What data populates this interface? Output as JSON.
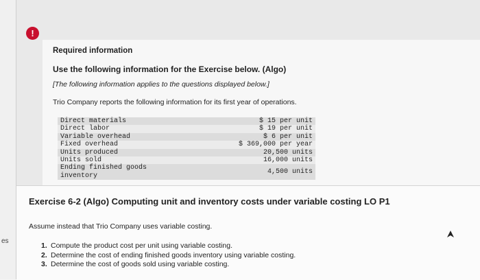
{
  "sidebar": {
    "text": "es"
  },
  "alert_icon": "!",
  "required": {
    "heading": "Required information",
    "instruction": "Use the following information for the Exercise below. (Algo)",
    "note": "[The following information applies to the questions displayed below.]",
    "intro": "Trio Company reports the following information for its first year of operations.",
    "table": {
      "rows": [
        [
          "Direct materials",
          "$ 15 per unit"
        ],
        [
          "Direct labor",
          "$ 19 per unit"
        ],
        [
          "Variable overhead",
          "$ 6 per unit"
        ],
        [
          "Fixed overhead",
          "$ 369,000 per year"
        ],
        [
          "Units produced",
          "20,500 units"
        ],
        [
          "Units sold",
          "16,000 units"
        ],
        [
          "Ending finished goods inventory",
          "4,500 units"
        ]
      ]
    }
  },
  "exercise": {
    "title": "Exercise 6-2 (Algo) Computing unit and inventory costs under variable costing LO P1",
    "intro": "Assume instead that Trio Company uses variable costing.",
    "questions": [
      {
        "number": "1.",
        "text": "Compute the product cost per unit using variable costing."
      },
      {
        "number": "2.",
        "text": "Determine the cost of ending finished goods inventory using variable costing."
      },
      {
        "number": "3.",
        "text": "Determine the cost of goods sold using variable costing."
      }
    ]
  }
}
